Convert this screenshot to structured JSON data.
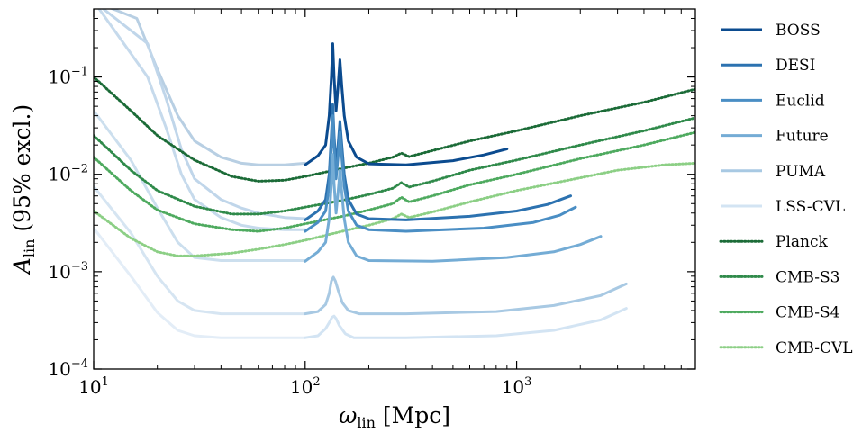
{
  "chart_data": {
    "type": "line",
    "title": "",
    "xlabel": {
      "symbol": "ω",
      "sub": "lin",
      "unit": " [Mpc]"
    },
    "ylabel": {
      "symbol": "A",
      "sub": "lin",
      "rest": " (95% excl.)"
    },
    "xscale": "log",
    "yscale": "log",
    "xlim": [
      10,
      7000
    ],
    "ylim": [
      0.0001,
      0.5
    ],
    "xticks": [
      {
        "value": 10,
        "base": "10",
        "exp": "1"
      },
      {
        "value": 100,
        "base": "10",
        "exp": "2"
      },
      {
        "value": 1000,
        "base": "10",
        "exp": "3"
      }
    ],
    "yticks": [
      {
        "value": 0.0001,
        "base": "10",
        "exp": "−4"
      },
      {
        "value": 0.001,
        "base": "10",
        "exp": "−3"
      },
      {
        "value": 0.01,
        "base": "10",
        "exp": "−2"
      },
      {
        "value": 0.1,
        "base": "10",
        "exp": "−1"
      }
    ],
    "legend_position": "right-outside",
    "series": [
      {
        "name": "BOSS",
        "style": "solid",
        "color": "#0b4b8f",
        "points": [
          [
            100,
            0.0125
          ],
          [
            115,
            0.0155
          ],
          [
            125,
            0.02
          ],
          [
            130,
            0.04
          ],
          [
            133,
            0.1
          ],
          [
            135,
            0.22
          ],
          [
            137,
            0.1
          ],
          [
            140,
            0.045
          ],
          [
            143,
            0.08
          ],
          [
            146,
            0.15
          ],
          [
            149,
            0.08
          ],
          [
            153,
            0.04
          ],
          [
            160,
            0.022
          ],
          [
            175,
            0.015
          ],
          [
            200,
            0.0128
          ],
          [
            300,
            0.0125
          ],
          [
            500,
            0.0138
          ],
          [
            700,
            0.0158
          ],
          [
            900,
            0.0182
          ]
        ]
      },
      {
        "name": "DESI",
        "style": "solid",
        "color": "#2c72b0",
        "points": [
          [
            100,
            0.0034
          ],
          [
            115,
            0.0042
          ],
          [
            125,
            0.0055
          ],
          [
            130,
            0.01
          ],
          [
            133,
            0.025
          ],
          [
            135,
            0.052
          ],
          [
            137,
            0.025
          ],
          [
            140,
            0.012
          ],
          [
            143,
            0.02
          ],
          [
            146,
            0.035
          ],
          [
            149,
            0.02
          ],
          [
            153,
            0.01
          ],
          [
            160,
            0.0055
          ],
          [
            175,
            0.0039
          ],
          [
            200,
            0.0035
          ],
          [
            300,
            0.0034
          ],
          [
            600,
            0.0037
          ],
          [
            1000,
            0.0042
          ],
          [
            1400,
            0.0049
          ],
          [
            1800,
            0.006
          ]
        ]
      },
      {
        "name": "Euclid",
        "style": "solid",
        "color": "#4a8ec4",
        "points": [
          [
            100,
            0.0026
          ],
          [
            115,
            0.0032
          ],
          [
            125,
            0.0042
          ],
          [
            130,
            0.0075
          ],
          [
            133,
            0.019
          ],
          [
            135,
            0.04
          ],
          [
            137,
            0.019
          ],
          [
            140,
            0.009
          ],
          [
            143,
            0.015
          ],
          [
            146,
            0.027
          ],
          [
            149,
            0.015
          ],
          [
            153,
            0.0075
          ],
          [
            160,
            0.0042
          ],
          [
            175,
            0.003
          ],
          [
            200,
            0.0027
          ],
          [
            300,
            0.0026
          ],
          [
            700,
            0.0028
          ],
          [
            1200,
            0.0032
          ],
          [
            1600,
            0.0038
          ],
          [
            1900,
            0.0046
          ]
        ]
      },
      {
        "name": "Future",
        "style": "solid",
        "color": "#74acd5",
        "points": [
          [
            100,
            0.00128
          ],
          [
            115,
            0.0016
          ],
          [
            125,
            0.002
          ],
          [
            130,
            0.0035
          ],
          [
            133,
            0.008
          ],
          [
            135,
            0.016
          ],
          [
            137,
            0.008
          ],
          [
            140,
            0.004
          ],
          [
            143,
            0.0065
          ],
          [
            146,
            0.011
          ],
          [
            149,
            0.0065
          ],
          [
            153,
            0.0035
          ],
          [
            160,
            0.002
          ],
          [
            175,
            0.00145
          ],
          [
            200,
            0.0013
          ],
          [
            400,
            0.00128
          ],
          [
            900,
            0.0014
          ],
          [
            1500,
            0.0016
          ],
          [
            2000,
            0.0019
          ],
          [
            2500,
            0.0023
          ]
        ]
      },
      {
        "name": "PUMA",
        "style": "solid",
        "color": "#a8c9e3",
        "points": [
          [
            100,
            0.00037
          ],
          [
            115,
            0.00039
          ],
          [
            125,
            0.00046
          ],
          [
            130,
            0.0006
          ],
          [
            133,
            0.0008
          ],
          [
            136,
            0.00088
          ],
          [
            139,
            0.0008
          ],
          [
            143,
            0.00065
          ],
          [
            150,
            0.00048
          ],
          [
            160,
            0.0004
          ],
          [
            180,
            0.00037
          ],
          [
            300,
            0.00037
          ],
          [
            800,
            0.00039
          ],
          [
            1500,
            0.00045
          ],
          [
            2500,
            0.00057
          ],
          [
            3300,
            0.00075
          ]
        ]
      },
      {
        "name": "LSS-CVL",
        "style": "solid",
        "color": "#d3e4f3",
        "points": [
          [
            100,
            0.00021
          ],
          [
            115,
            0.00022
          ],
          [
            125,
            0.00026
          ],
          [
            130,
            0.0003
          ],
          [
            134,
            0.00034
          ],
          [
            137,
            0.00035
          ],
          [
            140,
            0.00033
          ],
          [
            145,
            0.00028
          ],
          [
            155,
            0.00023
          ],
          [
            170,
            0.00021
          ],
          [
            300,
            0.00021
          ],
          [
            800,
            0.00022
          ],
          [
            1500,
            0.00025
          ],
          [
            2500,
            0.00032
          ],
          [
            3300,
            0.00042
          ]
        ]
      },
      {
        "name": "Planck",
        "style": "dotted",
        "color": "#1b6b37",
        "points": [
          [
            10,
            0.1
          ],
          [
            15,
            0.045
          ],
          [
            20,
            0.025
          ],
          [
            30,
            0.014
          ],
          [
            45,
            0.0095
          ],
          [
            60,
            0.0085
          ],
          [
            80,
            0.0087
          ],
          [
            100,
            0.0095
          ],
          [
            150,
            0.0115
          ],
          [
            200,
            0.013
          ],
          [
            260,
            0.015
          ],
          [
            285,
            0.0165
          ],
          [
            310,
            0.0152
          ],
          [
            400,
            0.0175
          ],
          [
            600,
            0.022
          ],
          [
            1000,
            0.028
          ],
          [
            2000,
            0.04
          ],
          [
            4000,
            0.055
          ],
          [
            7000,
            0.075
          ]
        ]
      },
      {
        "name": "CMB-S3",
        "style": "dotted",
        "color": "#2f8a4a",
        "points": [
          [
            10,
            0.025
          ],
          [
            15,
            0.011
          ],
          [
            20,
            0.0068
          ],
          [
            30,
            0.0047
          ],
          [
            45,
            0.0039
          ],
          [
            60,
            0.0039
          ],
          [
            80,
            0.0042
          ],
          [
            100,
            0.0046
          ],
          [
            150,
            0.0054
          ],
          [
            200,
            0.0062
          ],
          [
            260,
            0.0072
          ],
          [
            285,
            0.0082
          ],
          [
            310,
            0.0074
          ],
          [
            400,
            0.0085
          ],
          [
            600,
            0.011
          ],
          [
            1000,
            0.014
          ],
          [
            2000,
            0.02
          ],
          [
            4000,
            0.028
          ],
          [
            7000,
            0.038
          ]
        ]
      },
      {
        "name": "CMB-S4",
        "style": "dotted",
        "color": "#4eaa5f",
        "points": [
          [
            10,
            0.015
          ],
          [
            15,
            0.0068
          ],
          [
            20,
            0.0043
          ],
          [
            30,
            0.0031
          ],
          [
            45,
            0.0027
          ],
          [
            60,
            0.0026
          ],
          [
            80,
            0.0028
          ],
          [
            100,
            0.0031
          ],
          [
            150,
            0.0037
          ],
          [
            200,
            0.0043
          ],
          [
            260,
            0.005
          ],
          [
            285,
            0.0058
          ],
          [
            310,
            0.0052
          ],
          [
            400,
            0.006
          ],
          [
            600,
            0.0078
          ],
          [
            1000,
            0.01
          ],
          [
            2000,
            0.0145
          ],
          [
            4000,
            0.02
          ],
          [
            7000,
            0.027
          ]
        ]
      },
      {
        "name": "CMB-CVL",
        "style": "dotted",
        "color": "#8ccf85",
        "points": [
          [
            10,
            0.0042
          ],
          [
            15,
            0.0022
          ],
          [
            20,
            0.0016
          ],
          [
            25,
            0.00145
          ],
          [
            30,
            0.00145
          ],
          [
            45,
            0.00155
          ],
          [
            60,
            0.0017
          ],
          [
            80,
            0.0019
          ],
          [
            100,
            0.0021
          ],
          [
            150,
            0.0026
          ],
          [
            200,
            0.003
          ],
          [
            260,
            0.0035
          ],
          [
            285,
            0.0039
          ],
          [
            310,
            0.0036
          ],
          [
            400,
            0.0041
          ],
          [
            600,
            0.0052
          ],
          [
            1000,
            0.0068
          ],
          [
            2000,
            0.0092
          ],
          [
            3000,
            0.011
          ],
          [
            5000,
            0.0125
          ],
          [
            7000,
            0.013
          ]
        ]
      }
    ],
    "background_series": [
      {
        "color": "#b8cfe3",
        "points": [
          [
            10,
            0.6
          ],
          [
            16,
            0.4
          ],
          [
            20,
            0.12
          ],
          [
            25,
            0.04
          ],
          [
            30,
            0.022
          ],
          [
            40,
            0.015
          ],
          [
            50,
            0.013
          ],
          [
            60,
            0.0125
          ],
          [
            80,
            0.0125
          ],
          [
            100,
            0.013
          ]
        ]
      },
      {
        "color": "#c0d6ea",
        "points": [
          [
            10,
            0.6
          ],
          [
            18,
            0.22
          ],
          [
            22,
            0.06
          ],
          [
            26,
            0.018
          ],
          [
            30,
            0.009
          ],
          [
            40,
            0.0055
          ],
          [
            50,
            0.0045
          ],
          [
            60,
            0.004
          ],
          [
            80,
            0.0036
          ],
          [
            100,
            0.0035
          ]
        ]
      },
      {
        "color": "#c6daec",
        "points": [
          [
            10,
            0.6
          ],
          [
            18,
            0.1
          ],
          [
            22,
            0.03
          ],
          [
            26,
            0.01
          ],
          [
            30,
            0.0055
          ],
          [
            40,
            0.0036
          ],
          [
            50,
            0.003
          ],
          [
            60,
            0.0028
          ],
          [
            80,
            0.0027
          ],
          [
            100,
            0.0027
          ]
        ]
      },
      {
        "color": "#ccdfee",
        "points": [
          [
            10,
            0.045
          ],
          [
            15,
            0.014
          ],
          [
            20,
            0.0045
          ],
          [
            25,
            0.002
          ],
          [
            30,
            0.0014
          ],
          [
            40,
            0.0013
          ],
          [
            60,
            0.0013
          ],
          [
            80,
            0.0013
          ],
          [
            100,
            0.0013
          ]
        ]
      },
      {
        "color": "#d6e5f2",
        "points": [
          [
            10,
            0.0075
          ],
          [
            15,
            0.0025
          ],
          [
            20,
            0.0009
          ],
          [
            25,
            0.0005
          ],
          [
            30,
            0.0004
          ],
          [
            40,
            0.00037
          ],
          [
            60,
            0.00037
          ],
          [
            80,
            0.00037
          ],
          [
            100,
            0.00037
          ]
        ]
      },
      {
        "color": "#e3edf7",
        "points": [
          [
            10,
            0.0028
          ],
          [
            15,
            0.0009
          ],
          [
            20,
            0.00038
          ],
          [
            25,
            0.00025
          ],
          [
            30,
            0.00022
          ],
          [
            40,
            0.00021
          ],
          [
            60,
            0.00021
          ],
          [
            80,
            0.00021
          ],
          [
            100,
            0.00021
          ]
        ]
      }
    ]
  }
}
